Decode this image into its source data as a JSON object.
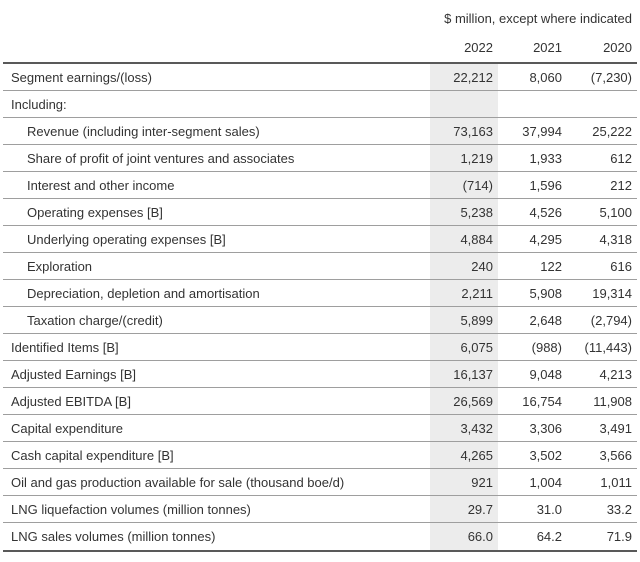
{
  "page": {
    "unit_note": "$ million, except where indicated"
  },
  "table": {
    "years": [
      "2022",
      "2021",
      "2020"
    ],
    "highlighted_year": "2022",
    "rows": [
      {
        "label": "Segment earnings/(loss)",
        "indent": false,
        "values": [
          "22,212",
          "8,060",
          "(7,230)"
        ]
      },
      {
        "label": "Including:",
        "indent": false,
        "values": [
          "",
          "",
          ""
        ]
      },
      {
        "label": "Revenue (including inter-segment sales)",
        "indent": true,
        "values": [
          "73,163",
          "37,994",
          "25,222"
        ]
      },
      {
        "label": "Share of profit of joint ventures and associates",
        "indent": true,
        "values": [
          "1,219",
          "1,933",
          "612"
        ]
      },
      {
        "label": "Interest and other income",
        "indent": true,
        "values": [
          "(714)",
          "1,596",
          "212"
        ]
      },
      {
        "label": "Operating expenses [B]",
        "indent": true,
        "values": [
          "5,238",
          "4,526",
          "5,100"
        ]
      },
      {
        "label": "Underlying operating expenses [B]",
        "indent": true,
        "values": [
          "4,884",
          "4,295",
          "4,318"
        ]
      },
      {
        "label": "Exploration",
        "indent": true,
        "values": [
          "240",
          "122",
          "616"
        ]
      },
      {
        "label": "Depreciation, depletion and amortisation",
        "indent": true,
        "values": [
          "2,211",
          "5,908",
          "19,314"
        ]
      },
      {
        "label": "Taxation charge/(credit)",
        "indent": true,
        "values": [
          "5,899",
          "2,648",
          "(2,794)"
        ]
      },
      {
        "label": "Identified Items [B]",
        "indent": false,
        "values": [
          "6,075",
          "(988)",
          "(11,443)"
        ]
      },
      {
        "label": "Adjusted Earnings [B]",
        "indent": false,
        "values": [
          "16,137",
          "9,048",
          "4,213"
        ]
      },
      {
        "label": "Adjusted EBITDA [B]",
        "indent": false,
        "values": [
          "26,569",
          "16,754",
          "11,908"
        ]
      },
      {
        "label": "Capital expenditure",
        "indent": false,
        "values": [
          "3,432",
          "3,306",
          "3,491"
        ]
      },
      {
        "label": "Cash capital expenditure [B]",
        "indent": false,
        "values": [
          "4,265",
          "3,502",
          "3,566"
        ]
      },
      {
        "label": "Oil and gas production available for sale (thousand boe/d)",
        "indent": false,
        "values": [
          "921",
          "1,004",
          "1,011"
        ]
      },
      {
        "label": "LNG liquefaction volumes (million tonnes)",
        "indent": false,
        "values": [
          "29.7",
          "31.0",
          "33.2"
        ]
      },
      {
        "label": "LNG sales volumes (million tonnes)",
        "indent": false,
        "values": [
          "66.0",
          "64.2",
          "71.9"
        ]
      }
    ]
  },
  "colors": {
    "highlight_column_bg": "#ececec",
    "row_separator": "#9e9e9e",
    "table_strong_border": "#595959",
    "text": "#333333",
    "background": "#ffffff"
  }
}
